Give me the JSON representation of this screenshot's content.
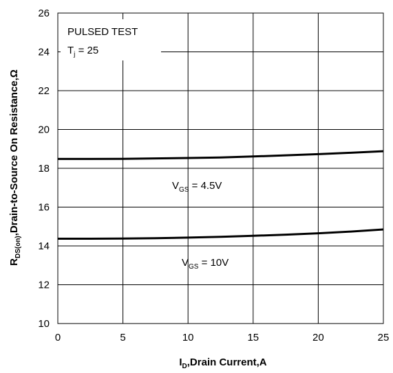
{
  "chart_data": {
    "type": "line",
    "title": "",
    "xlabel": {
      "main": "I",
      "sub": "D",
      "rest": ",Drain Current,A"
    },
    "ylabel": {
      "main": "R",
      "sub": "DS(on)",
      "rest": ",Drain-to-Source On Resistance,Ω"
    },
    "xlim": [
      0,
      25
    ],
    "ylim": [
      10,
      26
    ],
    "xticks": [
      0,
      5,
      10,
      15,
      20,
      25
    ],
    "yticks": [
      10,
      12,
      14,
      16,
      18,
      20,
      22,
      24,
      26
    ],
    "grid": true,
    "series": [
      {
        "label": {
          "main": "V",
          "sub": "GS",
          "rest": " = 4.5V"
        },
        "x": [
          0,
          2.5,
          5,
          7.5,
          10,
          12.5,
          15,
          17.5,
          20,
          22.5,
          25
        ],
        "y": [
          18.48,
          18.48,
          18.49,
          18.51,
          18.53,
          18.56,
          18.61,
          18.67,
          18.73,
          18.8,
          18.88
        ]
      },
      {
        "label": {
          "main": "V",
          "sub": "GS",
          "rest": " = 10V"
        },
        "x": [
          0,
          2.5,
          5,
          7.5,
          10,
          12.5,
          15,
          17.5,
          20,
          22.5,
          25
        ],
        "y": [
          14.37,
          14.37,
          14.38,
          14.4,
          14.43,
          14.47,
          14.52,
          14.58,
          14.65,
          14.74,
          14.85
        ]
      }
    ],
    "annotations": [
      {
        "text": "PULSED TEST"
      },
      {
        "main": "T",
        "sub": "j",
        "rest": " = 25"
      }
    ]
  }
}
